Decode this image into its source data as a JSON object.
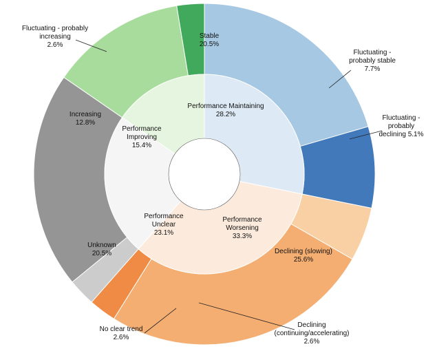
{
  "chart_data": {
    "type": "pie",
    "subtype": "sunburst",
    "center_hole": true,
    "inner": [
      {
        "label": "Performance Maintaining",
        "percent_label": "28.2%",
        "value": 28.2,
        "color": "#dde9f4"
      },
      {
        "label": "Performance Worsening",
        "percent_label": "33.3%",
        "value": 33.3,
        "color": "#fcebdc"
      },
      {
        "label": "Performance Unclear",
        "percent_label": "23.1%",
        "value": 23.1,
        "color": "#f5f5f5"
      },
      {
        "label": "Performance Improving",
        "percent_label": "15.4%",
        "value": 15.4,
        "color": "#e6f5e0"
      }
    ],
    "outer": [
      {
        "label": "Stable",
        "percent_label": "20.5%",
        "value": 20.5,
        "color": "#a7c8e2",
        "parent": "Performance Maintaining"
      },
      {
        "label": "Fluctuating - probably stable",
        "percent_label": "7.7%",
        "value": 7.7,
        "color": "#4179bb",
        "parent": "Performance Maintaining"
      },
      {
        "label": "Fluctuating - probably declining",
        "percent_label": "5.1%",
        "value": 5.1,
        "color": "#f9d0a4",
        "parent": "Performance Worsening"
      },
      {
        "label": "Declining (slowing)",
        "percent_label": "25.6%",
        "value": 25.6,
        "color": "#f4ae72",
        "parent": "Performance Worsening"
      },
      {
        "label": "Declining (continuing/accelerating)",
        "percent_label": "2.6%",
        "value": 2.6,
        "color": "#ef8b45",
        "parent": "Performance Worsening"
      },
      {
        "label": "No clear trend",
        "percent_label": "2.6%",
        "value": 2.6,
        "color": "#cccccc",
        "parent": "Performance Unclear"
      },
      {
        "label": "Unknown",
        "percent_label": "20.5%",
        "value": 20.5,
        "color": "#959595",
        "parent": "Performance Unclear"
      },
      {
        "label": "Increasing",
        "percent_label": "12.8%",
        "value": 12.8,
        "color": "#a8dc9c",
        "parent": "Performance Improving"
      },
      {
        "label": "Fluctuating - probably increasing",
        "percent_label": "2.6%",
        "value": 2.6,
        "color": "#41a95c",
        "parent": "Performance Improving"
      }
    ]
  }
}
